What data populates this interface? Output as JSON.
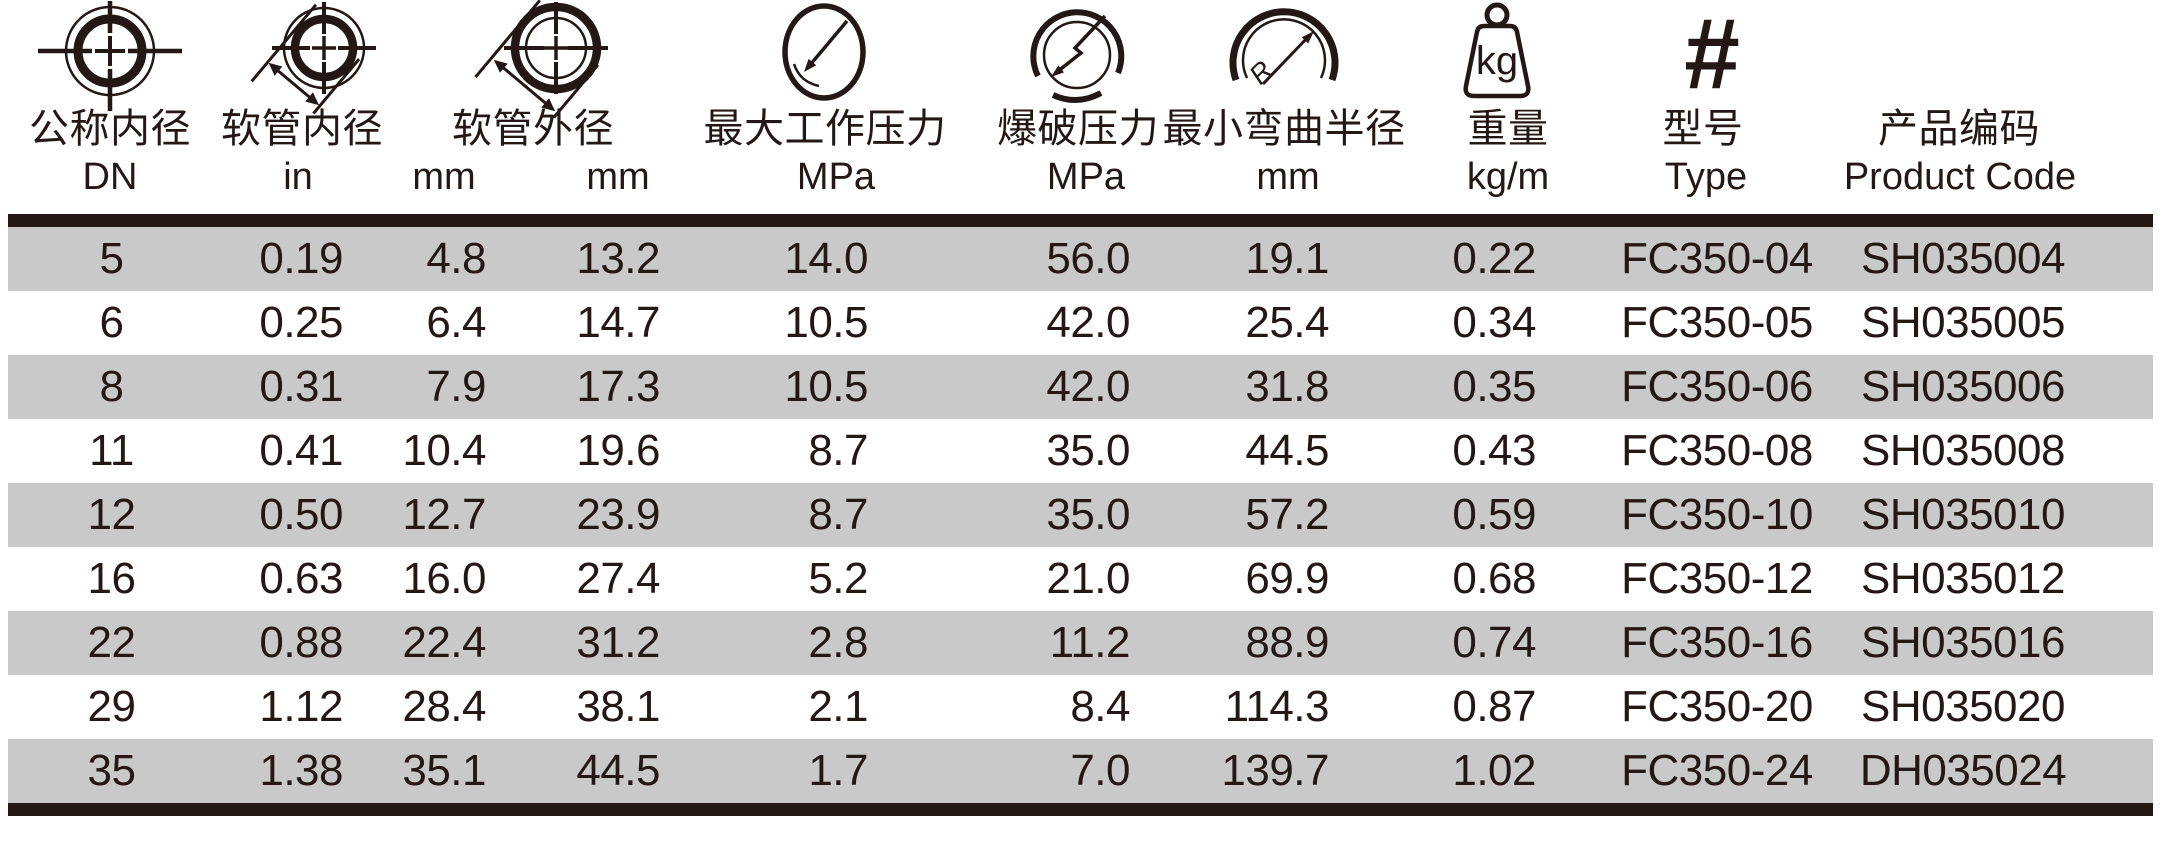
{
  "colors": {
    "ink": "#231815",
    "zebra_row": "#c9c9c9",
    "plain_row": "#ffffff",
    "background": "#ffffff"
  },
  "header": {
    "cn_labels": [
      "公称内径",
      "软管内径",
      "软管外径",
      "最大工作压力",
      "爆破压力",
      "最小弯曲半径",
      "重量",
      "型号",
      "产品编码"
    ],
    "units": [
      "DN",
      "in",
      "mm",
      "mm",
      "MPa",
      "MPa",
      "mm",
      "kg/m",
      "Type",
      "Product Code"
    ],
    "icons": [
      "nominal-diameter-crosshair-icon",
      "inner-diameter-measure-icon",
      "outer-diameter-measure-icon",
      "pressure-gauge-icon",
      "burst-pressure-gauge-icon",
      "bend-radius-arc-icon",
      "weight-kg-icon",
      "hash-icon"
    ],
    "weight_icon_text": "kg",
    "type_icon_glyph": "#",
    "radius_letter": "R"
  },
  "table": {
    "rows": [
      [
        "5",
        "0.19",
        "4.8",
        "13.2",
        "14.0",
        "56.0",
        "19.1",
        "0.22",
        "FC350-04",
        "SH035004"
      ],
      [
        "6",
        "0.25",
        "6.4",
        "14.7",
        "10.5",
        "42.0",
        "25.4",
        "0.34",
        "FC350-05",
        "SH035005"
      ],
      [
        "8",
        "0.31",
        "7.9",
        "17.3",
        "10.5",
        "42.0",
        "31.8",
        "0.35",
        "FC350-06",
        "SH035006"
      ],
      [
        "11",
        "0.41",
        "10.4",
        "19.6",
        "8.7",
        "35.0",
        "44.5",
        "0.43",
        "FC350-08",
        "SH035008"
      ],
      [
        "12",
        "0.50",
        "12.7",
        "23.9",
        "8.7",
        "35.0",
        "57.2",
        "0.59",
        "FC350-10",
        "SH035010"
      ],
      [
        "16",
        "0.63",
        "16.0",
        "27.4",
        "5.2",
        "21.0",
        "69.9",
        "0.68",
        "FC350-12",
        "SH035012"
      ],
      [
        "22",
        "0.88",
        "22.4",
        "31.2",
        "2.8",
        "11.2",
        "88.9",
        "0.74",
        "FC350-16",
        "SH035016"
      ],
      [
        "29",
        "1.12",
        "28.4",
        "38.1",
        "2.1",
        "8.4",
        "114.3",
        "0.87",
        "FC350-20",
        "SH035020"
      ],
      [
        "35",
        "1.38",
        "35.1",
        "44.5",
        "1.7",
        "7.0",
        "139.7",
        "1.02",
        "FC350-24",
        "DH035024"
      ]
    ]
  }
}
